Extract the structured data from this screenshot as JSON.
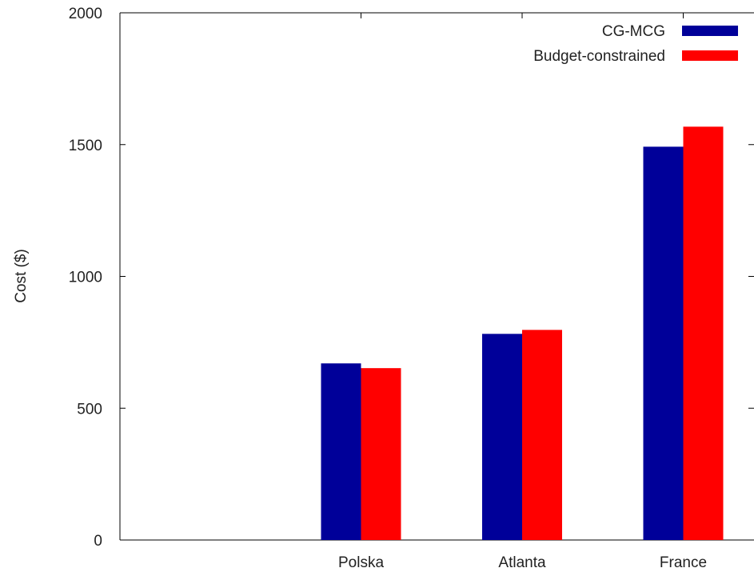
{
  "chart_data": {
    "type": "bar",
    "title": "",
    "xlabel": "",
    "ylabel": "Cost ($)",
    "ylim": [
      0,
      2000
    ],
    "yticks": [
      0,
      500,
      1000,
      1500,
      2000
    ],
    "categories": [
      "Polska",
      "Atlanta",
      "France"
    ],
    "series": [
      {
        "name": "CG-MCG",
        "color": "#000099",
        "values": [
          670,
          782,
          1492
        ]
      },
      {
        "name": "Budget-constrained",
        "color": "#ff0000",
        "values": [
          652,
          797,
          1568
        ]
      }
    ],
    "legend_position": "top-right",
    "grid": false
  }
}
